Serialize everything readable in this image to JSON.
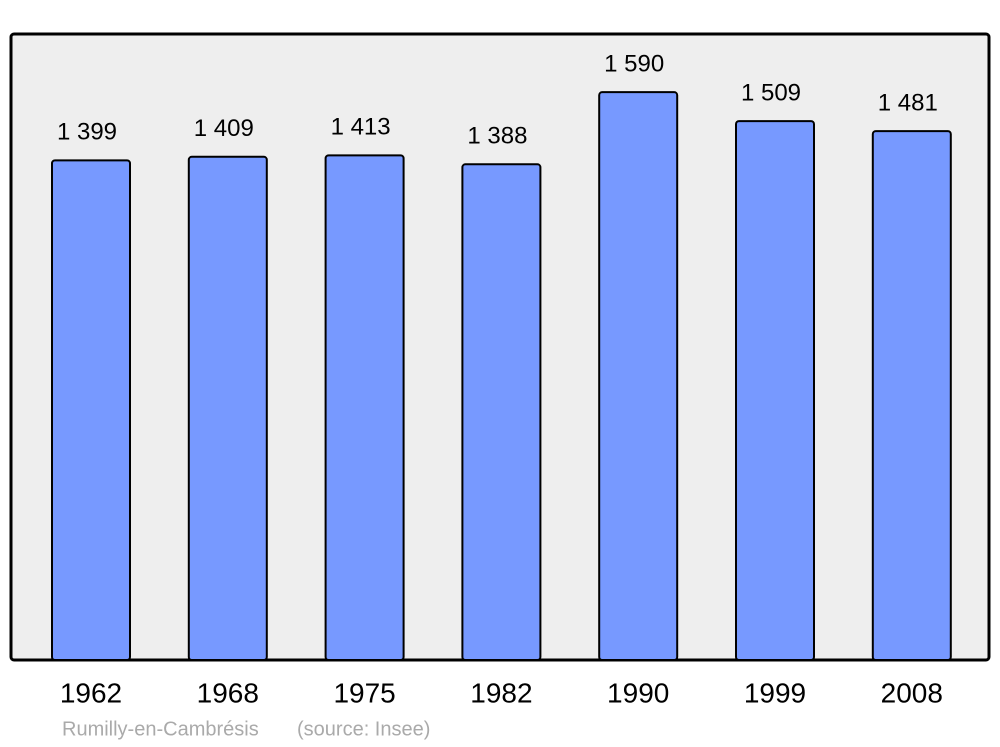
{
  "chart_data": {
    "type": "bar",
    "categories": [
      "1962",
      "1968",
      "1975",
      "1982",
      "1990",
      "1999",
      "2008"
    ],
    "values": [
      1399,
      1409,
      1413,
      1388,
      1590,
      1509,
      1481
    ],
    "value_labels": [
      "1 399",
      "1 409",
      "1 413",
      "1 388",
      "1 590",
      "1 509",
      "1 481"
    ],
    "color": "#7799ff",
    "ylim": [
      0,
      1750
    ],
    "note": "Rumilly-en-Cambrésis",
    "source": "(source: Insee)"
  }
}
